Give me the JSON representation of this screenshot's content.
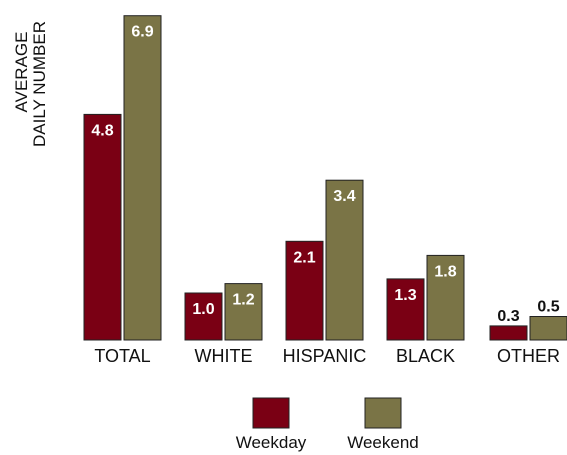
{
  "chart_data": {
    "type": "bar",
    "ylabel": [
      "AVERAGE",
      "DAILY NUMBER"
    ],
    "categories": [
      "TOTAL",
      "WHITE",
      "HISPANIC",
      "BLACK",
      "OTHER"
    ],
    "series": [
      {
        "name": "Weekday",
        "values": [
          4.8,
          1.0,
          2.1,
          1.3,
          0.3
        ],
        "labels": [
          "4.8",
          "1.0",
          "2.1",
          "1.3",
          "0.3"
        ],
        "color": "#7a0014"
      },
      {
        "name": "Weekend",
        "values": [
          6.9,
          1.2,
          3.4,
          1.8,
          0.5
        ],
        "labels": [
          "6.9",
          "1.2",
          "3.4",
          "1.8",
          "0.5"
        ],
        "color": "#7a7446"
      }
    ],
    "ylim": [
      0,
      7
    ],
    "grid": false,
    "legend_position": "bottom-center"
  }
}
